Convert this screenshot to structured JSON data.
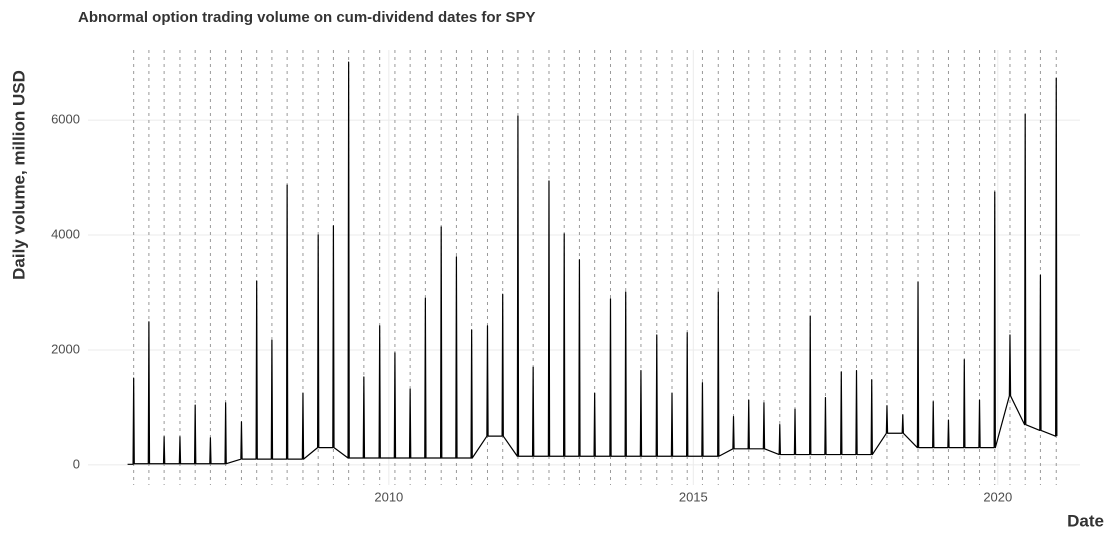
{
  "chart_data": {
    "type": "line",
    "title": "Abnormal option trading volume on cum-dividend dates for SPY",
    "x_label": "Date",
    "y_label": "Daily volume, million USD",
    "xlim": [
      2005.06,
      2021.35
    ],
    "xticks": [
      2010,
      2015,
      2020
    ],
    "ylim": [
      -350,
      7220
    ],
    "yticks": [
      0,
      2000,
      4000,
      6000
    ],
    "grid": true,
    "color": "#000000",
    "dividend_line_color": "#999999",
    "dividend_dates": [
      2005.81,
      2006.06,
      2006.31,
      2006.57,
      2006.82,
      2007.07,
      2007.32,
      2007.58,
      2007.83,
      2008.08,
      2008.33,
      2008.59,
      2008.84,
      2009.09,
      2009.34,
      2009.59,
      2009.85,
      2010.1,
      2010.35,
      2010.6,
      2010.86,
      2011.11,
      2011.36,
      2011.62,
      2011.87,
      2012.12,
      2012.37,
      2012.63,
      2012.88,
      2013.13,
      2013.38,
      2013.64,
      2013.89,
      2014.14,
      2014.4,
      2014.65,
      2014.9,
      2015.15,
      2015.41,
      2015.66,
      2015.91,
      2016.16,
      2016.42,
      2016.67,
      2016.92,
      2017.17,
      2017.43,
      2017.68,
      2017.93,
      2018.18,
      2018.44,
      2018.69,
      2018.94,
      2019.19,
      2019.45,
      2019.7,
      2019.95,
      2020.2,
      2020.45,
      2020.7,
      2020.96
    ],
    "x": [
      2005.71,
      2005.8,
      2005.81,
      2005.82,
      2006.05,
      2006.06,
      2006.07,
      2006.3,
      2006.31,
      2006.32,
      2006.56,
      2006.57,
      2006.58,
      2006.81,
      2006.82,
      2006.83,
      2007.06,
      2007.07,
      2007.08,
      2007.31,
      2007.32,
      2007.33,
      2007.57,
      2007.58,
      2007.59,
      2007.82,
      2007.83,
      2007.84,
      2008.07,
      2008.08,
      2008.09,
      2008.32,
      2008.33,
      2008.34,
      2008.58,
      2008.59,
      2008.6,
      2008.83,
      2008.84,
      2008.85,
      2009.08,
      2009.09,
      2009.1,
      2009.33,
      2009.34,
      2009.35,
      2009.58,
      2009.59,
      2009.6,
      2009.84,
      2009.85,
      2009.86,
      2010.09,
      2010.1,
      2010.11,
      2010.34,
      2010.35,
      2010.36,
      2010.59,
      2010.6,
      2010.61,
      2010.85,
      2010.86,
      2010.87,
      2011.1,
      2011.11,
      2011.12,
      2011.35,
      2011.36,
      2011.37,
      2011.61,
      2011.62,
      2011.63,
      2011.86,
      2011.87,
      2011.88,
      2012.11,
      2012.12,
      2012.13,
      2012.36,
      2012.37,
      2012.38,
      2012.62,
      2012.63,
      2012.64,
      2012.87,
      2012.88,
      2012.89,
      2013.12,
      2013.13,
      2013.14,
      2013.37,
      2013.38,
      2013.39,
      2013.63,
      2013.64,
      2013.65,
      2013.88,
      2013.89,
      2013.9,
      2014.13,
      2014.14,
      2014.15,
      2014.39,
      2014.4,
      2014.41,
      2014.64,
      2014.65,
      2014.66,
      2014.89,
      2014.9,
      2014.91,
      2015.14,
      2015.15,
      2015.16,
      2015.4,
      2015.41,
      2015.42,
      2015.65,
      2015.66,
      2015.67,
      2015.9,
      2015.91,
      2015.92,
      2016.15,
      2016.16,
      2016.17,
      2016.41,
      2016.42,
      2016.43,
      2016.66,
      2016.67,
      2016.68,
      2016.91,
      2016.92,
      2016.93,
      2017.16,
      2017.17,
      2017.18,
      2017.42,
      2017.43,
      2017.44,
      2017.67,
      2017.68,
      2017.69,
      2017.92,
      2017.93,
      2017.94,
      2018.17,
      2018.18,
      2018.19,
      2018.43,
      2018.44,
      2018.45,
      2018.68,
      2018.69,
      2018.7,
      2018.93,
      2018.94,
      2018.95,
      2019.18,
      2019.19,
      2019.2,
      2019.44,
      2019.45,
      2019.46,
      2019.69,
      2019.7,
      2019.71,
      2019.94,
      2019.95,
      2019.96,
      2020.19,
      2020.2,
      2020.21,
      2020.44,
      2020.45,
      2020.46,
      2020.69,
      2020.7,
      2020.71,
      2020.95,
      2020.96,
      2020.97
    ],
    "values": [
      10,
      10,
      1510,
      20,
      20,
      2490,
      20,
      20,
      490,
      20,
      20,
      490,
      20,
      20,
      1040,
      20,
      20,
      470,
      20,
      20,
      1080,
      20,
      100,
      750,
      100,
      100,
      3200,
      100,
      100,
      2170,
      100,
      100,
      4870,
      100,
      100,
      1250,
      100,
      300,
      4000,
      300,
      300,
      4160,
      300,
      120,
      7010,
      120,
      120,
      1530,
      120,
      120,
      2420,
      120,
      120,
      1950,
      120,
      120,
      1320,
      120,
      120,
      2900,
      120,
      120,
      4140,
      120,
      120,
      3620,
      120,
      120,
      2350,
      120,
      500,
      2420,
      500,
      500,
      2970,
      500,
      150,
      6070,
      150,
      150,
      1700,
      150,
      150,
      4940,
      150,
      150,
      4020,
      150,
      150,
      3570,
      150,
      150,
      1250,
      150,
      150,
      2890,
      150,
      150,
      3010,
      150,
      150,
      1640,
      150,
      150,
      2260,
      150,
      150,
      1250,
      150,
      150,
      2300,
      150,
      150,
      1430,
      150,
      150,
      3010,
      150,
      280,
      840,
      280,
      280,
      1130,
      280,
      280,
      1080,
      280,
      180,
      700,
      180,
      180,
      970,
      180,
      180,
      2590,
      180,
      180,
      1170,
      180,
      180,
      1620,
      180,
      180,
      1640,
      180,
      180,
      1480,
      180,
      550,
      1030,
      550,
      550,
      870,
      550,
      300,
      3180,
      300,
      300,
      1100,
      300,
      300,
      780,
      300,
      300,
      1830,
      300,
      300,
      1130,
      300,
      300,
      4750,
      300,
      1200,
      2260,
      1200,
      700,
      6100,
      700,
      600,
      3300,
      600,
      500,
      6730,
      500
    ]
  }
}
